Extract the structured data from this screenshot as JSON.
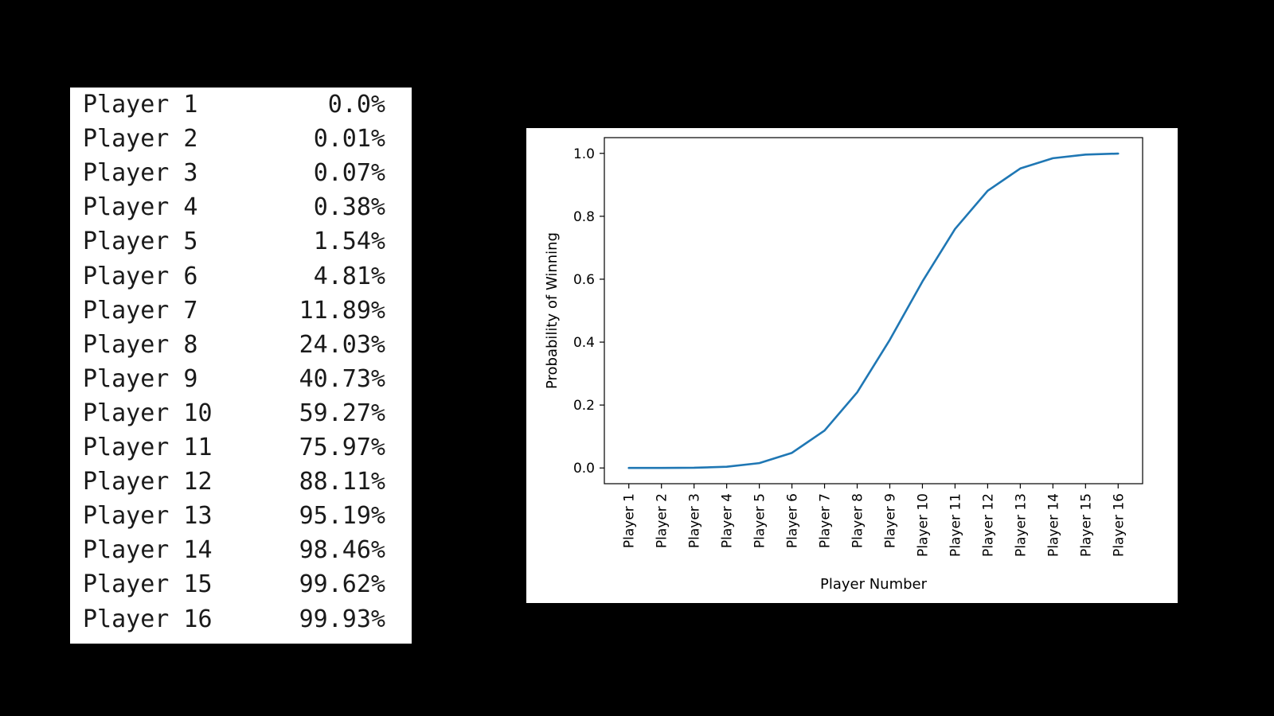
{
  "table": {
    "rows": [
      {
        "name": "Player 1",
        "value": "0.0%"
      },
      {
        "name": "Player 2",
        "value": "0.01%"
      },
      {
        "name": "Player 3",
        "value": "0.07%"
      },
      {
        "name": "Player 4",
        "value": "0.38%"
      },
      {
        "name": "Player 5",
        "value": "1.54%"
      },
      {
        "name": "Player 6",
        "value": "4.81%"
      },
      {
        "name": "Player 7",
        "value": "11.89%"
      },
      {
        "name": "Player 8",
        "value": "24.03%"
      },
      {
        "name": "Player 9",
        "value": "40.73%"
      },
      {
        "name": "Player 10",
        "value": "59.27%"
      },
      {
        "name": "Player 11",
        "value": "75.97%"
      },
      {
        "name": "Player 12",
        "value": "88.11%"
      },
      {
        "name": "Player 13",
        "value": "95.19%"
      },
      {
        "name": "Player 14",
        "value": "98.46%"
      },
      {
        "name": "Player 15",
        "value": "99.62%"
      },
      {
        "name": "Player 16",
        "value": "99.93%"
      }
    ]
  },
  "chart_data": {
    "type": "line",
    "title": "",
    "xlabel": "Player Number",
    "ylabel": "Probability of Winning",
    "categories": [
      "Player 1",
      "Player 2",
      "Player 3",
      "Player 4",
      "Player 5",
      "Player 6",
      "Player 7",
      "Player 8",
      "Player 9",
      "Player 10",
      "Player 11",
      "Player 12",
      "Player 13",
      "Player 14",
      "Player 15",
      "Player 16"
    ],
    "series": [
      {
        "values": [
          0.0,
          0.0001,
          0.0007,
          0.0038,
          0.0154,
          0.0481,
          0.1189,
          0.2403,
          0.4073,
          0.5927,
          0.7597,
          0.8811,
          0.9519,
          0.9846,
          0.9962,
          0.9993
        ],
        "color": "#1f77b4"
      }
    ],
    "ylim": [
      -0.05,
      1.05
    ],
    "yticks": [
      0.0,
      0.2,
      0.4,
      0.6,
      0.8,
      1.0
    ],
    "ytick_labels": [
      "0.0",
      "0.2",
      "0.4",
      "0.6",
      "0.8",
      "1.0"
    ],
    "grid": false,
    "legend": "none"
  }
}
